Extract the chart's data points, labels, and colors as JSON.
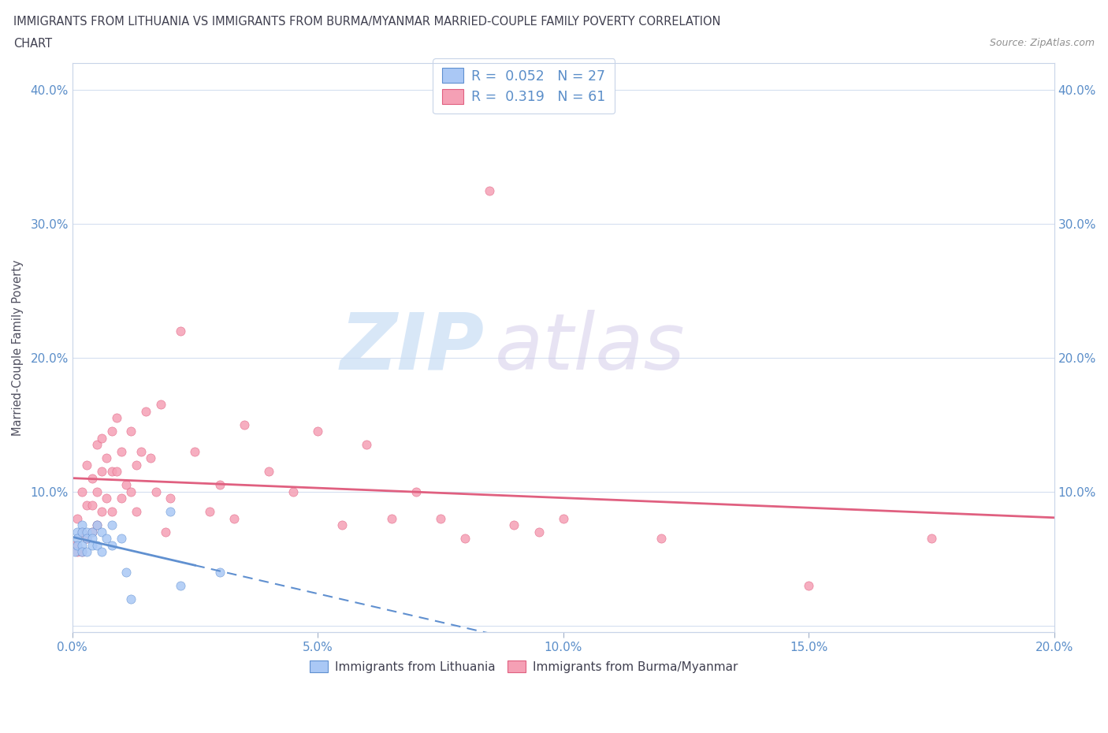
{
  "title_line1": "IMMIGRANTS FROM LITHUANIA VS IMMIGRANTS FROM BURMA/MYANMAR MARRIED-COUPLE FAMILY POVERTY CORRELATION",
  "title_line2": "CHART",
  "source": "Source: ZipAtlas.com",
  "ylabel": "Married-Couple Family Poverty",
  "xlim": [
    0.0,
    0.2
  ],
  "ylim": [
    -0.005,
    0.42
  ],
  "xticks": [
    0.0,
    0.05,
    0.1,
    0.15,
    0.2
  ],
  "xtick_labels": [
    "0.0%",
    "5.0%",
    "10.0%",
    "15.0%",
    "20.0%"
  ],
  "yticks": [
    0.0,
    0.1,
    0.2,
    0.3,
    0.4
  ],
  "ytick_labels_left": [
    "",
    "10.0%",
    "20.0%",
    "30.0%",
    "40.0%"
  ],
  "ytick_labels_right": [
    "",
    "10.0%",
    "20.0%",
    "30.0%",
    "40.0%"
  ],
  "color_lithuania": "#aac8f5",
  "color_burma": "#f5a0b5",
  "color_trendline_lithuania": "#6090d0",
  "color_trendline_burma": "#e06080",
  "watermark_zip": "ZIP",
  "watermark_atlas": "atlas",
  "background_color": "#ffffff",
  "tick_color": "#5b8ec9",
  "grid_color": "#d5dff0",
  "lit_x": [
    0.0005,
    0.001,
    0.001,
    0.001,
    0.002,
    0.002,
    0.002,
    0.002,
    0.003,
    0.003,
    0.003,
    0.004,
    0.004,
    0.004,
    0.005,
    0.005,
    0.006,
    0.006,
    0.007,
    0.008,
    0.008,
    0.01,
    0.011,
    0.012,
    0.02,
    0.022,
    0.03
  ],
  "lit_y": [
    0.055,
    0.07,
    0.065,
    0.06,
    0.075,
    0.07,
    0.06,
    0.055,
    0.07,
    0.065,
    0.055,
    0.07,
    0.065,
    0.06,
    0.075,
    0.06,
    0.07,
    0.055,
    0.065,
    0.075,
    0.06,
    0.065,
    0.04,
    0.02,
    0.085,
    0.03,
    0.04
  ],
  "burma_x": [
    0.0005,
    0.001,
    0.001,
    0.002,
    0.002,
    0.002,
    0.003,
    0.003,
    0.003,
    0.004,
    0.004,
    0.004,
    0.005,
    0.005,
    0.005,
    0.006,
    0.006,
    0.006,
    0.007,
    0.007,
    0.008,
    0.008,
    0.008,
    0.009,
    0.009,
    0.01,
    0.01,
    0.011,
    0.012,
    0.012,
    0.013,
    0.013,
    0.014,
    0.015,
    0.016,
    0.017,
    0.018,
    0.019,
    0.02,
    0.022,
    0.025,
    0.028,
    0.03,
    0.033,
    0.035,
    0.04,
    0.045,
    0.05,
    0.055,
    0.06,
    0.065,
    0.07,
    0.075,
    0.08,
    0.09,
    0.095,
    0.1,
    0.12,
    0.15,
    0.175,
    0.085
  ],
  "burma_y": [
    0.06,
    0.08,
    0.055,
    0.1,
    0.07,
    0.055,
    0.12,
    0.09,
    0.065,
    0.11,
    0.09,
    0.07,
    0.135,
    0.1,
    0.075,
    0.14,
    0.115,
    0.085,
    0.125,
    0.095,
    0.145,
    0.115,
    0.085,
    0.155,
    0.115,
    0.13,
    0.095,
    0.105,
    0.145,
    0.1,
    0.12,
    0.085,
    0.13,
    0.16,
    0.125,
    0.1,
    0.165,
    0.07,
    0.095,
    0.22,
    0.13,
    0.085,
    0.105,
    0.08,
    0.15,
    0.115,
    0.1,
    0.145,
    0.075,
    0.135,
    0.08,
    0.1,
    0.08,
    0.065,
    0.075,
    0.07,
    0.08,
    0.065,
    0.03,
    0.065,
    0.325
  ]
}
